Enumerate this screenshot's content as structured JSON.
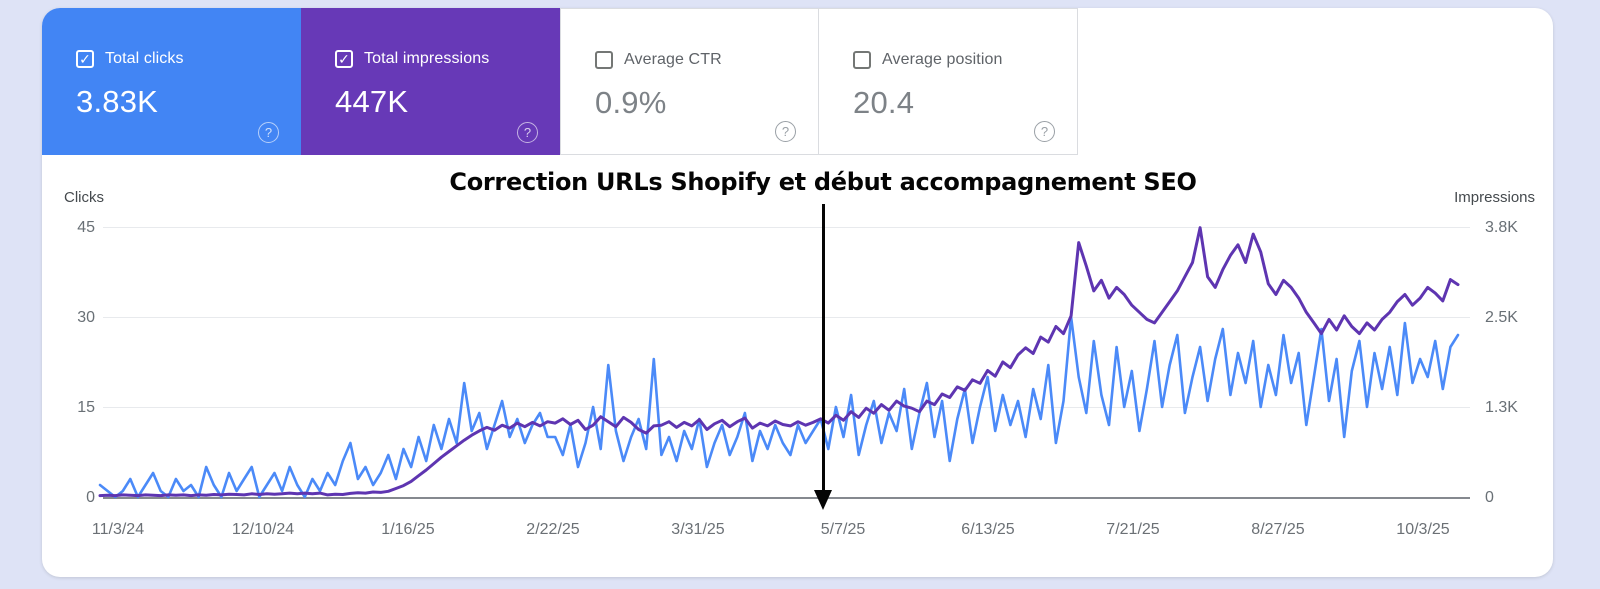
{
  "cards": [
    {
      "id": "total-clicks",
      "label": "Total clicks",
      "value": "3.83K",
      "selected": true,
      "bg": "#4285f4",
      "check_glyph": "✓",
      "help_glyph": "?"
    },
    {
      "id": "total-impressions",
      "label": "Total impressions",
      "value": "447K",
      "selected": true,
      "bg": "#6739b7",
      "check_glyph": "✓",
      "help_glyph": "?"
    },
    {
      "id": "average-ctr",
      "label": "Average CTR",
      "value": "0.9%",
      "selected": false,
      "bg": "#ffffff",
      "check_glyph": "",
      "help_glyph": "?"
    },
    {
      "id": "average-position",
      "label": "Average position",
      "value": "20.4",
      "selected": false,
      "bg": "#ffffff",
      "check_glyph": "",
      "help_glyph": "?"
    }
  ],
  "chart": {
    "left_axis_title": "Clicks",
    "right_axis_title": "Impressions",
    "left_ticks": [
      "45",
      "30",
      "15",
      "0"
    ],
    "right_ticks": [
      "3.8K",
      "2.5K",
      "1.3K",
      "0"
    ],
    "x_ticks": [
      "11/3/24",
      "12/10/24",
      "1/16/25",
      "2/22/25",
      "3/31/25",
      "5/7/25",
      "6/13/25",
      "7/21/25",
      "8/27/25",
      "10/3/25"
    ],
    "annotation": {
      "text": "Correction URLs Shopify et début accompagnement SEO",
      "arrow_points_at": "5/7/25"
    }
  },
  "chart_data": {
    "type": "line",
    "title": "Search performance over time",
    "x_range": [
      "11/3/24",
      "10/8/25"
    ],
    "x_tick_labels": [
      "11/3/24",
      "12/10/24",
      "1/16/25",
      "2/22/25",
      "3/31/25",
      "5/7/25",
      "6/13/25",
      "7/21/25",
      "8/27/25",
      "10/3/25"
    ],
    "grid": true,
    "legend_position": "none",
    "left_ylim": [
      0,
      45
    ],
    "right_ylim": [
      0,
      3800
    ],
    "left_yticks": [
      0,
      15,
      30,
      45
    ],
    "right_yticks": [
      0,
      1300,
      2500,
      3800
    ],
    "annotation": {
      "text": "Correction URLs Shopify et début accompagnement SEO",
      "x": "5/2/25"
    },
    "series": [
      {
        "name": "Clicks",
        "axis": "left",
        "color": "#4b8af8",
        "values": [
          2,
          1,
          0,
          1,
          3,
          0,
          2,
          4,
          1,
          0,
          3,
          1,
          2,
          0,
          5,
          2,
          0,
          4,
          1,
          3,
          5,
          0,
          2,
          4,
          1,
          5,
          2,
          0,
          3,
          1,
          4,
          2,
          6,
          9,
          3,
          5,
          2,
          4,
          7,
          3,
          8,
          5,
          10,
          6,
          12,
          8,
          13,
          9,
          19,
          11,
          14,
          8,
          12,
          16,
          10,
          13,
          9,
          12,
          14,
          10,
          10,
          7,
          12,
          5,
          9,
          15,
          8,
          22,
          11,
          6,
          10,
          13,
          8,
          23,
          7,
          10,
          6,
          11,
          8,
          13,
          5,
          9,
          12,
          7,
          10,
          14,
          6,
          11,
          8,
          12,
          9,
          7,
          12,
          9,
          11,
          13,
          8,
          15,
          10,
          17,
          7,
          12,
          16,
          9,
          14,
          11,
          18,
          8,
          14,
          19,
          10,
          16,
          6,
          13,
          18,
          9,
          15,
          20,
          11,
          17,
          12,
          16,
          10,
          18,
          13,
          22,
          9,
          16,
          30,
          20,
          14,
          26,
          17,
          12,
          25,
          15,
          21,
          11,
          18,
          26,
          15,
          22,
          27,
          14,
          20,
          25,
          16,
          23,
          28,
          17,
          24,
          19,
          26,
          15,
          22,
          17,
          27,
          19,
          24,
          12,
          20,
          28,
          16,
          23,
          10,
          21,
          26,
          15,
          24,
          18,
          25,
          17,
          29,
          19,
          23,
          20,
          26,
          18,
          25,
          27
        ]
      },
      {
        "name": "Impressions",
        "axis": "right",
        "color": "#5e35b1",
        "values": [
          20,
          25,
          20,
          30,
          25,
          20,
          30,
          25,
          20,
          30,
          25,
          30,
          20,
          30,
          25,
          35,
          30,
          40,
          35,
          30,
          45,
          35,
          45,
          40,
          45,
          55,
          45,
          55,
          45,
          55,
          30,
          40,
          35,
          50,
          60,
          55,
          70,
          65,
          80,
          120,
          160,
          220,
          300,
          380,
          470,
          560,
          640,
          720,
          800,
          870,
          930,
          980,
          940,
          1010,
          970,
          1040,
          990,
          1050,
          1000,
          1060,
          1040,
          1100,
          1020,
          1080,
          950,
          1010,
          1130,
          1060,
          990,
          1120,
          1050,
          950,
          900,
          1000,
          1010,
          1060,
          980,
          1050,
          1000,
          1090,
          950,
          1030,
          1080,
          990,
          1060,
          1110,
          970,
          1040,
          1000,
          1070,
          1020,
          1000,
          1060,
          1010,
          1050,
          1100,
          1040,
          1150,
          1080,
          1200,
          1120,
          1250,
          1180,
          1300,
          1220,
          1350,
          1280,
          1250,
          1200,
          1350,
          1300,
          1450,
          1400,
          1550,
          1500,
          1650,
          1600,
          1780,
          1700,
          1900,
          1820,
          2000,
          2100,
          2020,
          2250,
          2180,
          2400,
          2300,
          2550,
          3580,
          3250,
          2900,
          3050,
          2800,
          2950,
          2850,
          2700,
          2600,
          2500,
          2450,
          2600,
          2750,
          2900,
          3100,
          3300,
          3790,
          3100,
          2950,
          3200,
          3400,
          3550,
          3300,
          3700,
          3450,
          3000,
          2850,
          3050,
          2950,
          2800,
          2600,
          2450,
          2300,
          2500,
          2350,
          2550,
          2400,
          2300,
          2450,
          2350,
          2500,
          2600,
          2750,
          2850,
          2700,
          2800,
          2950,
          2870,
          2760,
          3060,
          2990
        ]
      }
    ]
  }
}
